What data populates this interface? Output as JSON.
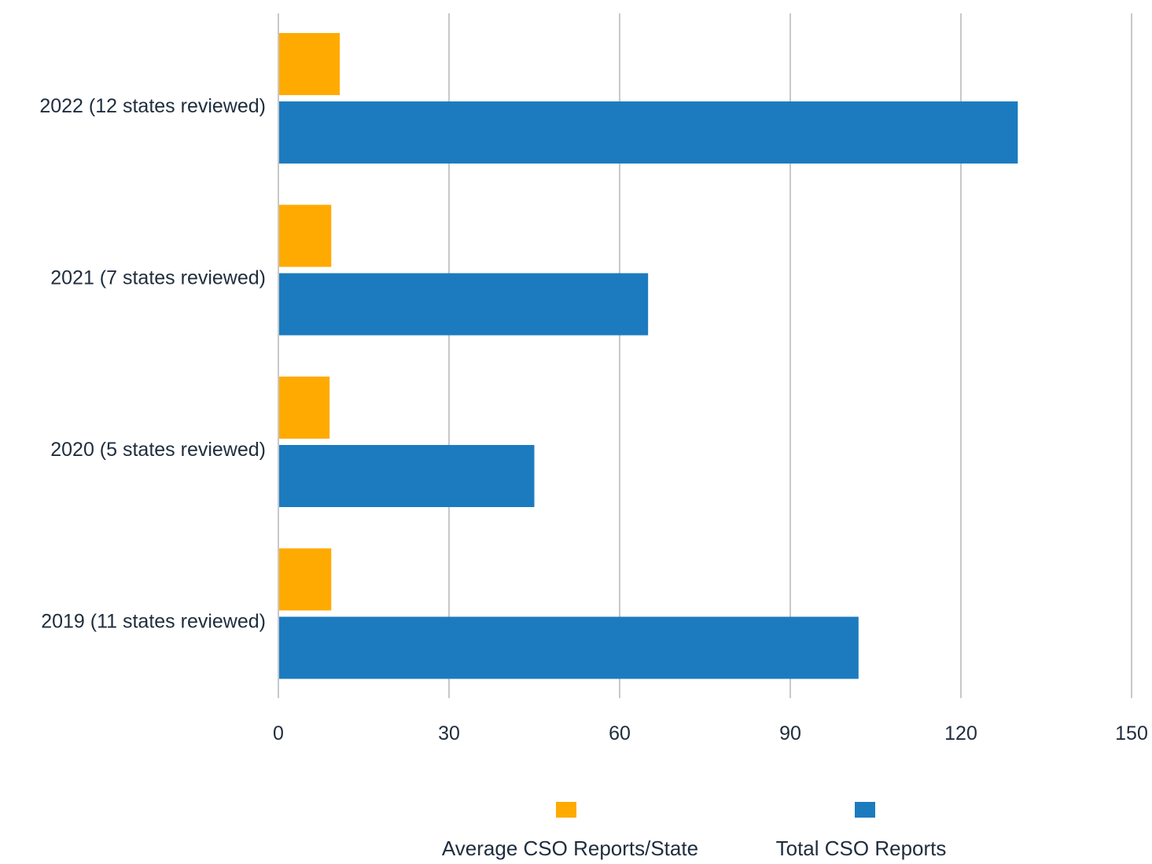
{
  "chart_data": {
    "type": "bar",
    "orientation": "horizontal",
    "categories": [
      "2022 (12 states reviewed)",
      "2021 (7 states reviewed)",
      "2020 (5 states reviewed)",
      "2019 (11 states reviewed)"
    ],
    "series": [
      {
        "name": "Average CSO Reports/State",
        "color": "#FFAA00",
        "values": [
          10.8,
          9.3,
          9.0,
          9.3
        ]
      },
      {
        "name": "Total CSO Reports",
        "color": "#1C7BBF",
        "values": [
          130,
          65,
          45,
          102
        ]
      }
    ],
    "xlim": [
      0,
      150
    ],
    "xticks": [
      "0",
      "30",
      "60",
      "90",
      "120",
      "150"
    ],
    "grid": true,
    "legend_position": "bottom"
  }
}
